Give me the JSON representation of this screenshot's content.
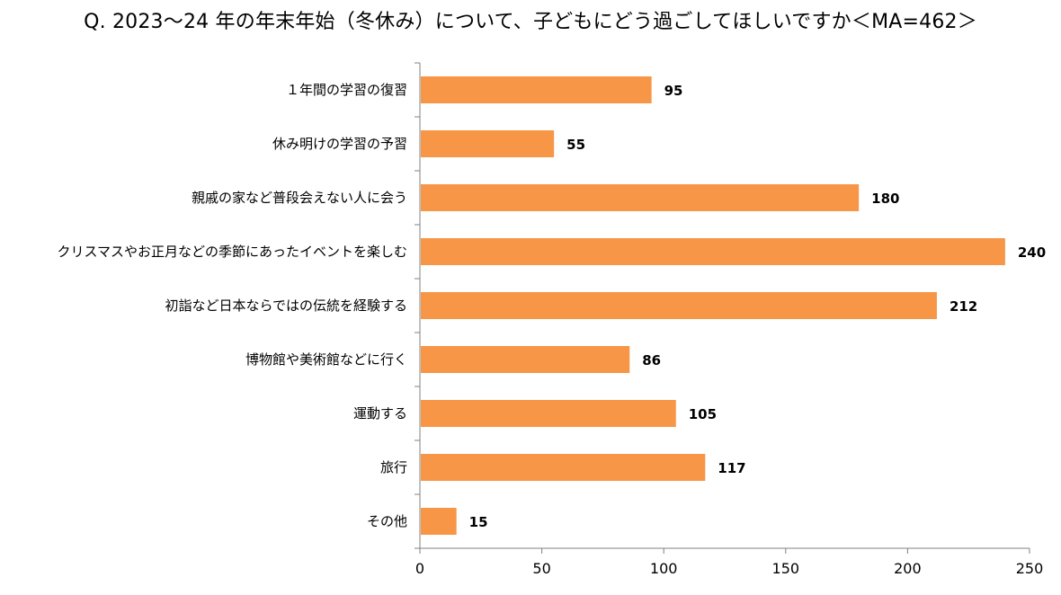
{
  "chart_data": {
    "type": "bar",
    "orientation": "horizontal",
    "title": "Q. 2023～24 年の年末年始（冬休み）について、子どもにどう過ごしてほしいですか＜MA=462＞",
    "categories": [
      "１年間の学習の復習",
      "休み明けの学習の予習",
      "親戚の家など普段会えない人に会う",
      "クリスマスやお正月などの季節にあったイベントを楽しむ",
      "初詣など日本ならではの伝統を経験する",
      "博物館や美術館などに行く",
      "運動する",
      "旅行",
      "その他"
    ],
    "values": [
      95,
      55,
      180,
      240,
      212,
      86,
      105,
      117,
      15
    ],
    "xlim": [
      0,
      250
    ],
    "xticks": [
      "0",
      "50",
      "100",
      "150",
      "200",
      "250"
    ],
    "bar_color": "#F79646",
    "grid": false,
    "xlabel": "",
    "ylabel": ""
  }
}
